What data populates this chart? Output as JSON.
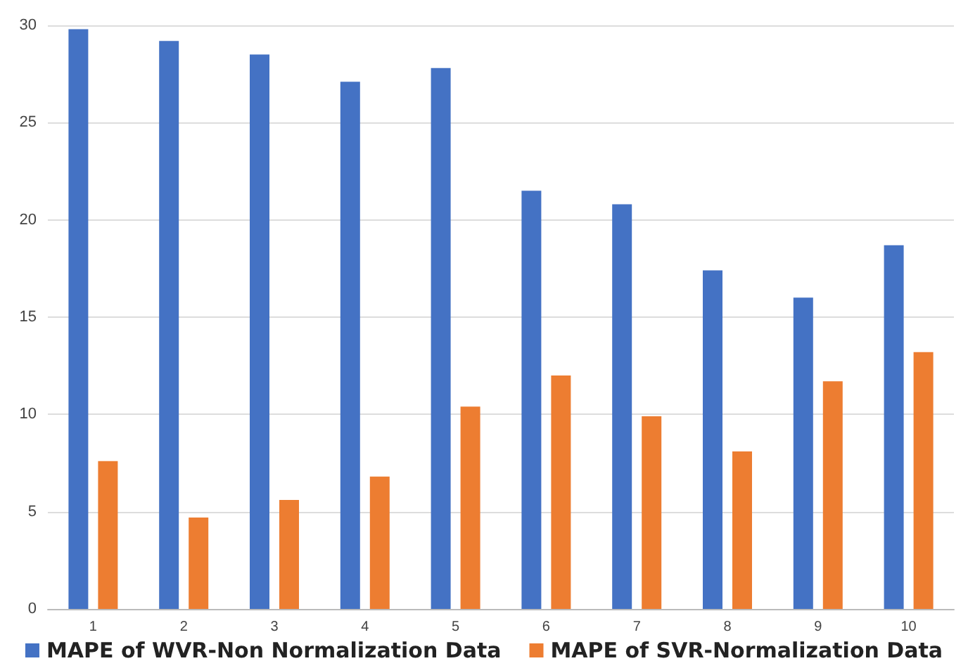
{
  "chart_data": {
    "type": "bar",
    "categories": [
      "1",
      "2",
      "3",
      "4",
      "5",
      "6",
      "7",
      "8",
      "9",
      "10"
    ],
    "series": [
      {
        "name": "MAPE of WVR-Non Normalization Data",
        "color": "#4472c4",
        "values": [
          29.8,
          29.2,
          28.5,
          27.1,
          27.8,
          21.5,
          20.8,
          17.4,
          16.0,
          18.7
        ]
      },
      {
        "name": "MAPE of SVR-Normalization Data",
        "color": "#ed7d31",
        "values": [
          7.6,
          4.7,
          5.6,
          6.8,
          10.4,
          12.0,
          9.9,
          8.1,
          11.7,
          13.2
        ]
      }
    ],
    "ylim": [
      0,
      30
    ],
    "yticks": [
      0,
      5,
      10,
      15,
      20,
      25,
      30
    ],
    "grid": "y",
    "legend": "bottom"
  }
}
